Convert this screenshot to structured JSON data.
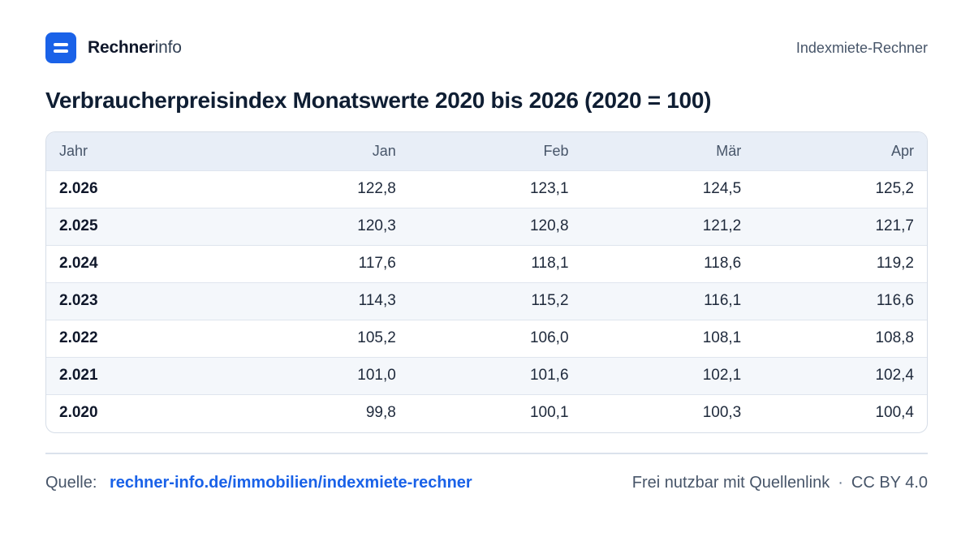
{
  "header": {
    "brand_strong": "Rechner",
    "brand_light": "info",
    "right_label": "Indexmiete-Rechner"
  },
  "title": "Verbraucherpreisindex Monatswerte 2020 bis 2026 (2020 = 100)",
  "table": {
    "columns": [
      "Jahr",
      "Jan",
      "Feb",
      "Mär",
      "Apr"
    ],
    "rows": [
      [
        "2.026",
        "122,8",
        "123,1",
        "124,5",
        "125,2"
      ],
      [
        "2.025",
        "120,3",
        "120,8",
        "121,2",
        "121,7"
      ],
      [
        "2.024",
        "117,6",
        "118,1",
        "118,6",
        "119,2"
      ],
      [
        "2.023",
        "114,3",
        "115,2",
        "116,1",
        "116,6"
      ],
      [
        "2.022",
        "105,2",
        "106,0",
        "108,1",
        "108,8"
      ],
      [
        "2.021",
        "101,0",
        "101,6",
        "102,1",
        "102,4"
      ],
      [
        "2.020",
        "99,8",
        "100,1",
        "100,3",
        "100,4"
      ]
    ]
  },
  "footer": {
    "source_label": "Quelle:",
    "source_link": "rechner-info.de/immobilien/indexmiete-rechner",
    "license_text": "Frei nutzbar mit Quellenlink",
    "separator": "·",
    "license_name": "CC BY 4.0"
  },
  "colors": {
    "brand": "#1a62e8",
    "header_bg": "#e8eef7",
    "stripe_bg": "#f4f7fb"
  },
  "icons": {
    "logo": "rechnerinfo-logo-icon"
  }
}
